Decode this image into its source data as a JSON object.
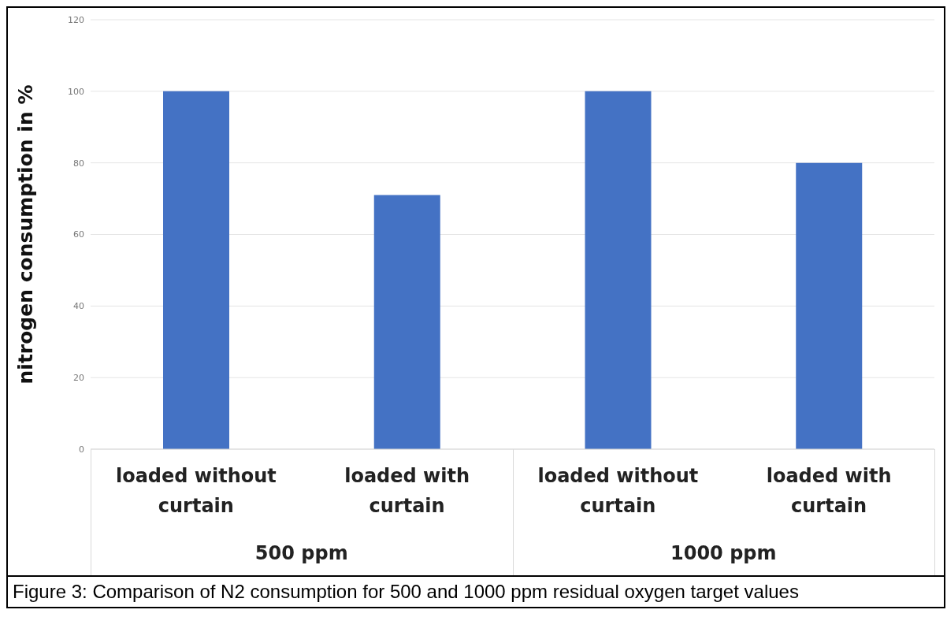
{
  "chart_data": {
    "type": "bar",
    "ylabel": "nitrogen consumption in %",
    "categories": [
      "loaded without curtain",
      "loaded with curtain",
      "loaded without curtain",
      "loaded with curtain"
    ],
    "values": [
      100,
      71,
      100,
      80
    ],
    "color": "#4472c4",
    "ylim": [
      0,
      120
    ],
    "yticks": [
      0,
      20,
      40,
      60,
      80,
      100,
      120
    ],
    "grid": "y",
    "annotations": [
      "500 ppm",
      "1000 ppm",
      "Figure 3: Comparison of N2 consumption for 500 and 1000 ppm residual oxygen target values"
    ]
  }
}
